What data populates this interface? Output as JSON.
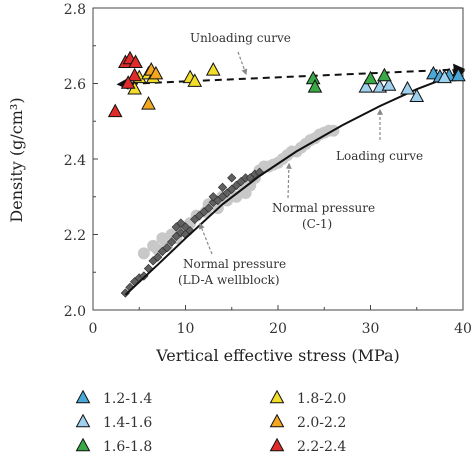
{
  "chart_data": {
    "type": "scatter",
    "xlabel": "Vertical effective stress (MPa)",
    "ylabel": "Density (g/cm³)",
    "xlim": [
      0,
      40
    ],
    "ylim": [
      2.0,
      2.8
    ],
    "xticks": [
      "0",
      "10",
      "20",
      "30",
      "40"
    ],
    "yticks": [
      "2.0",
      "2.2",
      "2.4",
      "2.6",
      "2.8"
    ],
    "grid": false,
    "colors": {
      "1.2-1.4": "#4aa8d8",
      "1.4-1.6": "#9fd0ee",
      "1.6-1.8": "#3aa845",
      "1.8-2.0": "#f1dd2a",
      "2.0-2.2": "#f3a61f",
      "2.2-2.4": "#e02b2b",
      "c1": "#c8c8c8",
      "lda": "#606060"
    },
    "legend": [
      {
        "label": "1.2-1.4",
        "color": "#4aa8d8"
      },
      {
        "label": "1.8-2.0",
        "color": "#f1dd2a"
      },
      {
        "label": "1.4-1.6",
        "color": "#9fd0ee"
      },
      {
        "label": "2.0-2.2",
        "color": "#f3a61f"
      },
      {
        "label": "1.6-1.8",
        "color": "#3aa845"
      },
      {
        "label": "2.2-2.4",
        "color": "#e02b2b"
      }
    ],
    "legend_position": "below plot",
    "annotations": {
      "unloading": "Unloading curve",
      "loading": "Loading curve",
      "normal_c1_line1": "Normal pressure",
      "normal_c1_line2": "(C-1)",
      "normal_lda_line1": "Normal pressure",
      "normal_lda_line2": "(LD-A wellblock)"
    },
    "series": [
      {
        "name": "1.2-1.4",
        "points": [
          [
            36.8,
            2.625
          ],
          [
            38.5,
            2.62
          ],
          [
            39.5,
            2.62
          ],
          [
            37.5,
            2.617
          ]
        ]
      },
      {
        "name": "1.4-1.6",
        "points": [
          [
            29.5,
            2.59
          ],
          [
            31.0,
            2.59
          ],
          [
            32.0,
            2.595
          ],
          [
            34.0,
            2.585
          ],
          [
            35.0,
            2.565
          ],
          [
            38.0,
            2.615
          ]
        ]
      },
      {
        "name": "1.6-1.8",
        "points": [
          [
            23.8,
            2.612
          ],
          [
            24.0,
            2.59
          ],
          [
            30.0,
            2.612
          ],
          [
            31.5,
            2.62
          ]
        ]
      },
      {
        "name": "1.8-2.0",
        "points": [
          [
            5.0,
            2.615
          ],
          [
            6.0,
            2.625
          ],
          [
            6.5,
            2.615
          ],
          [
            10.5,
            2.615
          ],
          [
            11.0,
            2.605
          ],
          [
            13.0,
            2.635
          ],
          [
            4.5,
            2.585
          ]
        ]
      },
      {
        "name": "2.0-2.2",
        "points": [
          [
            6.3,
            2.635
          ],
          [
            6.8,
            2.625
          ],
          [
            6.0,
            2.545
          ]
        ]
      },
      {
        "name": "2.2-2.4",
        "points": [
          [
            3.5,
            2.655
          ],
          [
            4.0,
            2.665
          ],
          [
            4.5,
            2.62
          ],
          [
            3.8,
            2.6
          ],
          [
            2.4,
            2.525
          ],
          [
            4.6,
            2.655
          ]
        ]
      },
      {
        "name": "c1",
        "points": [
          [
            7.5,
            2.19
          ],
          [
            8.5,
            2.2
          ],
          [
            9.5,
            2.21
          ],
          [
            10.5,
            2.23
          ],
          [
            11.2,
            2.25
          ],
          [
            12.2,
            2.26
          ],
          [
            13.5,
            2.27
          ],
          [
            14.5,
            2.29
          ],
          [
            15.5,
            2.3
          ],
          [
            16.5,
            2.31
          ],
          [
            17.0,
            2.33
          ],
          [
            17.5,
            2.35
          ],
          [
            18.0,
            2.37
          ],
          [
            18.5,
            2.38
          ],
          [
            19.0,
            2.38
          ],
          [
            19.5,
            2.385
          ],
          [
            20.0,
            2.39
          ],
          [
            20.5,
            2.4
          ],
          [
            21.0,
            2.41
          ],
          [
            21.5,
            2.42
          ],
          [
            22.0,
            2.42
          ],
          [
            22.5,
            2.43
          ],
          [
            23.0,
            2.44
          ],
          [
            23.5,
            2.45
          ],
          [
            24.0,
            2.455
          ],
          [
            24.5,
            2.465
          ],
          [
            25.0,
            2.47
          ],
          [
            25.5,
            2.475
          ],
          [
            26.0,
            2.475
          ],
          [
            8.0,
            2.17
          ],
          [
            9.0,
            2.19
          ],
          [
            12.5,
            2.28
          ],
          [
            14.0,
            2.3
          ],
          [
            16.0,
            2.33
          ],
          [
            6.5,
            2.17
          ],
          [
            5.5,
            2.15
          ],
          [
            7.0,
            2.16
          ]
        ]
      },
      {
        "name": "lda",
        "points": [
          [
            3.5,
            2.045
          ],
          [
            4.0,
            2.06
          ],
          [
            4.5,
            2.075
          ],
          [
            5.0,
            2.085
          ],
          [
            5.5,
            2.09
          ],
          [
            6.0,
            2.11
          ],
          [
            6.5,
            2.13
          ],
          [
            7.0,
            2.14
          ],
          [
            7.5,
            2.155
          ],
          [
            8.0,
            2.165
          ],
          [
            8.5,
            2.18
          ],
          [
            9.0,
            2.195
          ],
          [
            9.5,
            2.205
          ],
          [
            10.0,
            2.22
          ],
          [
            9.5,
            2.23
          ],
          [
            10.5,
            2.21
          ],
          [
            11.0,
            2.24
          ],
          [
            11.5,
            2.25
          ],
          [
            12.0,
            2.26
          ],
          [
            12.5,
            2.27
          ],
          [
            13.0,
            2.285
          ],
          [
            13.5,
            2.29
          ],
          [
            14.0,
            2.3
          ],
          [
            14.5,
            2.31
          ],
          [
            15.0,
            2.32
          ],
          [
            15.5,
            2.33
          ],
          [
            16.0,
            2.34
          ],
          [
            16.5,
            2.35
          ],
          [
            17.0,
            2.35
          ],
          [
            17.5,
            2.36
          ],
          [
            18.0,
            2.365
          ],
          [
            15.0,
            2.35
          ],
          [
            14.0,
            2.325
          ],
          [
            13.0,
            2.3
          ],
          [
            9.0,
            2.22
          ],
          [
            10.0,
            2.2
          ]
        ]
      }
    ],
    "lines": [
      {
        "name": "unloading",
        "style": "dashed",
        "points": [
          [
            2.8,
            2.598
          ],
          [
            40.0,
            2.638
          ]
        ]
      },
      {
        "name": "loading",
        "style": "solid",
        "points": [
          [
            3.5,
            2.04
          ],
          [
            7.0,
            2.12
          ],
          [
            10.0,
            2.19
          ],
          [
            14.0,
            2.28
          ],
          [
            18.0,
            2.355
          ],
          [
            22.0,
            2.42
          ],
          [
            27.0,
            2.49
          ],
          [
            31.0,
            2.54
          ],
          [
            35.0,
            2.585
          ],
          [
            40.0,
            2.632
          ]
        ]
      }
    ]
  }
}
